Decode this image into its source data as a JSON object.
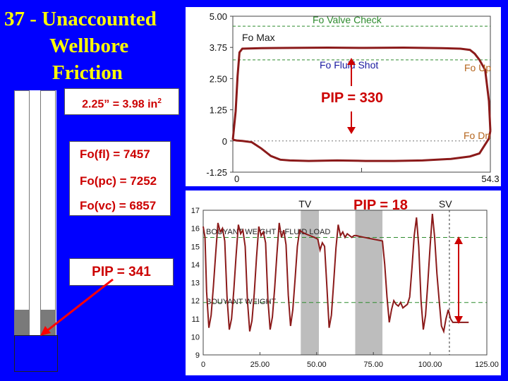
{
  "title": {
    "line1": "37 - Unaccounted",
    "line2": "Wellbore",
    "line3": "Friction"
  },
  "annotations": {
    "area": "2.25” = 3.98 in",
    "area_sup": "2",
    "fo_fl": "Fo(fl) = 7457",
    "fo_pc": "Fo(pc) = 7252",
    "fo_vc": "Fo(vc) = 6857",
    "pip_left": "PIP = 341",
    "pip_top": "PIP = 330",
    "pip_bottom": "PIP = 18"
  },
  "colors": {
    "background": "#0000ff",
    "title": "#ffff00",
    "trace": "#8b1a1a",
    "guide": "#2e8b2e",
    "label_red": "#cc0000"
  },
  "chart_data": [
    {
      "type": "line",
      "title": "",
      "xlim": [
        0,
        54.3
      ],
      "ylim": [
        -1.25,
        5.0
      ],
      "x_ticks": [
        "0",
        "54.3"
      ],
      "y_ticks": [
        "5.00",
        "3.75",
        "2.50",
        "1.25",
        "0",
        "-1.25"
      ],
      "hlines": [
        {
          "y": 4.6,
          "label": "Fo Valve Check"
        },
        {
          "y": 3.25,
          "label": "Fo Fluid Shot"
        }
      ],
      "annotations": [
        "Fo Max",
        "Fo Up",
        "Fo Dn"
      ],
      "series": [
        {
          "x": [
            0,
            0.6,
            1.0,
            1.4,
            2.0,
            6,
            12,
            20,
            28,
            36,
            44,
            48,
            50,
            51,
            52,
            52.6,
            53.2,
            54.0,
            54.3
          ],
          "y": [
            0.05,
            1.2,
            2.6,
            3.55,
            3.7,
            3.72,
            3.73,
            3.74,
            3.73,
            3.74,
            3.72,
            3.7,
            3.65,
            3.5,
            3.25,
            3.05,
            2.85,
            1.6,
            0.4
          ]
        },
        {
          "x": [
            54.3,
            54.0,
            52,
            50,
            46,
            40,
            34,
            28,
            22,
            16,
            12,
            10,
            8,
            6,
            4,
            2,
            0.8,
            0
          ],
          "y": [
            0.4,
            0.1,
            -0.5,
            -0.62,
            -0.72,
            -0.78,
            -0.8,
            -0.8,
            -0.78,
            -0.8,
            -0.78,
            -0.75,
            -0.6,
            -0.3,
            -0.05,
            0.0,
            0.02,
            0.05
          ]
        }
      ]
    },
    {
      "type": "line",
      "title": "",
      "xlim": [
        0,
        125
      ],
      "ylim": [
        9,
        17
      ],
      "x_ticks": [
        "0",
        "25.00",
        "50.00",
        "75.00",
        "100.00",
        "125.00"
      ],
      "y_ticks": [
        "17",
        "16",
        "15",
        "14",
        "13",
        "12",
        "11",
        "10",
        "9"
      ],
      "hlines": [
        {
          "y": 15.5,
          "label": "BOUYANT WEIGHT + FLUID LOAD"
        },
        {
          "y": 11.9,
          "label": "BOUYANT WEIGHT"
        }
      ],
      "shaded": [
        {
          "x0": 43,
          "x1": 51,
          "label": "TV"
        },
        {
          "x0": 67,
          "x1": 79,
          "label": ""
        }
      ],
      "vline": {
        "x": 108.5,
        "label": "SV"
      },
      "series": [
        {
          "x": [
            0,
            0.8,
            1.5,
            2.5,
            3.5,
            4.5,
            5.5,
            6.5,
            7.5,
            8.5,
            9.5,
            10.5,
            11.5,
            12.5,
            13.5,
            14.5,
            15.5,
            16.5,
            17.5,
            18.5,
            19.5,
            20.5,
            21.5,
            22.5,
            23.5,
            24.5,
            25.5,
            26.5,
            27.5,
            28.5,
            29.5,
            30.5,
            31.5,
            32.5,
            33.5,
            34.5,
            35.5,
            36.5,
            37.5,
            38.5,
            39.5,
            40.5,
            41.5,
            42.5,
            43.5,
            45,
            47,
            49,
            50.5,
            51.5,
            52.5,
            53.5,
            54.5,
            55.5,
            56.5,
            57.5,
            58.5,
            59.5,
            60.5,
            61.5,
            62.5,
            63.5,
            64.5,
            65.5,
            66.5,
            67.5,
            69,
            71,
            73,
            75,
            77,
            79,
            80,
            81,
            82,
            83,
            84,
            85,
            86,
            87,
            88,
            89,
            90,
            91,
            92,
            93,
            94,
            95,
            96,
            97,
            98,
            99,
            100,
            101,
            102,
            103,
            104,
            105,
            106,
            107,
            108,
            109,
            110,
            112,
            114,
            116,
            117
          ],
          "y": [
            16.1,
            15.5,
            12.5,
            10.5,
            11.2,
            12.8,
            14.6,
            16.3,
            15.8,
            16.0,
            15.3,
            12.2,
            10.4,
            11.0,
            12.6,
            14.5,
            16.2,
            15.7,
            15.9,
            15.0,
            12.0,
            10.3,
            10.9,
            12.4,
            14.4,
            16.1,
            15.6,
            15.8,
            15.2,
            12.1,
            10.4,
            11.1,
            12.7,
            14.6,
            16.3,
            15.5,
            15.9,
            15.1,
            12.3,
            10.6,
            11.5,
            13.2,
            15.0,
            15.9,
            15.8,
            15.7,
            15.6,
            15.5,
            15.4,
            14.8,
            15.2,
            15.0,
            12.8,
            10.5,
            11.2,
            13.0,
            14.9,
            16.2,
            15.6,
            15.8,
            15.5,
            15.7,
            15.6,
            15.5,
            15.6,
            15.6,
            15.55,
            15.5,
            15.45,
            15.4,
            15.35,
            15.3,
            14.0,
            12.2,
            10.8,
            11.5,
            12.0,
            11.8,
            11.7,
            11.9,
            11.6,
            11.7,
            11.8,
            12.2,
            13.8,
            15.6,
            16.6,
            15.0,
            12.0,
            10.4,
            11.2,
            13.0,
            15.0,
            16.8,
            15.5,
            13.5,
            12.0,
            10.6,
            10.3,
            11.0,
            11.5,
            11.0,
            10.8,
            10.8,
            10.8,
            10.8,
            10.8
          ]
        }
      ]
    }
  ]
}
